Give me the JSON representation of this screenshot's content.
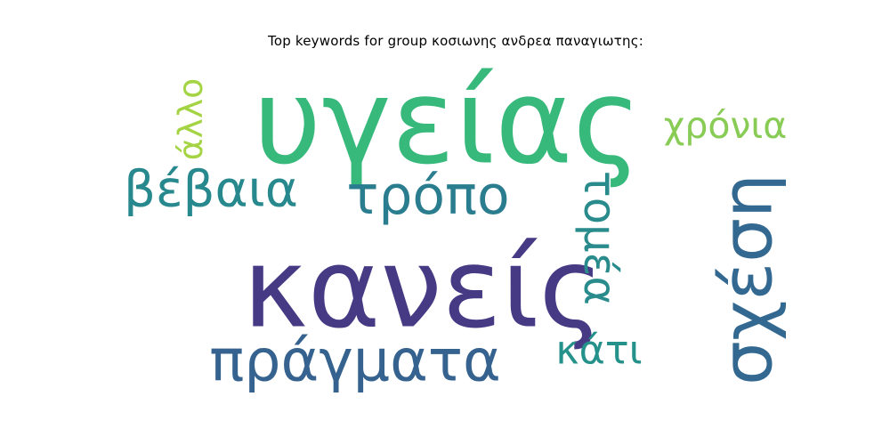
{
  "chart_data": {
    "type": "wordcloud",
    "title": "Top keywords for group κοσιωνης ανδρεα παναγιωτης:",
    "words": [
      {
        "text": "κανείς",
        "rank": 1,
        "color": "#463a85",
        "orientation": "horizontal"
      },
      {
        "text": "υγείας",
        "rank": 2,
        "color": "#37b97b",
        "orientation": "horizontal"
      },
      {
        "text": "πράγματα",
        "rank": 3,
        "color": "#35628e",
        "orientation": "horizontal"
      },
      {
        "text": "σχέση",
        "rank": 4,
        "color": "#336891",
        "orientation": "vertical"
      },
      {
        "text": "τρόπο",
        "rank": 5,
        "color": "#2a7d8f",
        "orientation": "horizontal"
      },
      {
        "text": "βέβαια",
        "rank": 6,
        "color": "#27888e",
        "orientation": "horizontal"
      },
      {
        "text": "κάτι",
        "rank": 7,
        "color": "#25918b",
        "orientation": "horizontal"
      },
      {
        "text": "τομέα",
        "rank": 8,
        "color": "#2a8b8c",
        "orientation": "vertical"
      },
      {
        "text": "χρόνια",
        "rank": 9,
        "color": "#88cc55",
        "orientation": "horizontal"
      },
      {
        "text": "άλλο",
        "rank": 10,
        "color": "#a4d444",
        "orientation": "vertical"
      }
    ]
  }
}
